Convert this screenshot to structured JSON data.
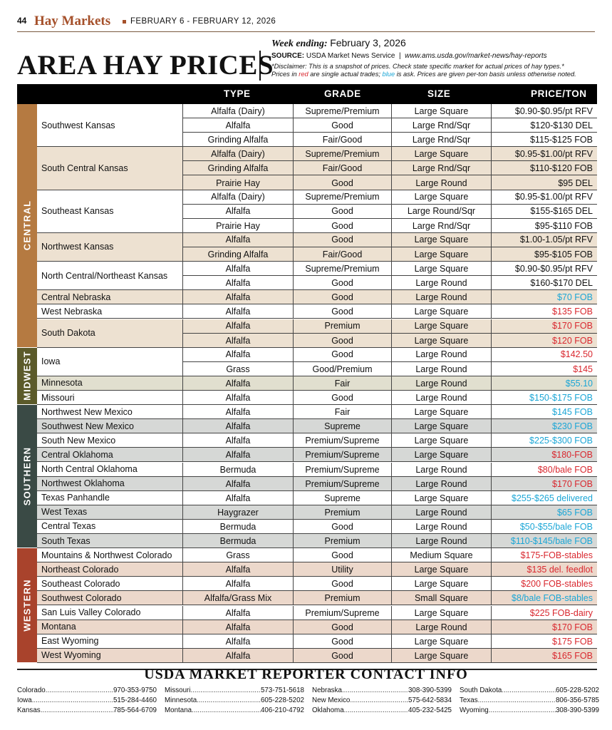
{
  "header": {
    "page_number": "44",
    "section": "Hay Markets",
    "dates": "FEBRUARY 6 - FEBRUARY 12, 2026"
  },
  "title": "AREA HAY PRICES",
  "week_ending_label": "Week ending:",
  "week_ending_date": "February 3, 2026",
  "source_label": "SOURCE:",
  "source_text": "USDA Market News Service",
  "source_url": "www.ams.usda.gov/market-news/hay-reports",
  "disclaimer_1": "*Disclaimer: This is a snapshot of prices. Check state specific market for actual prices of hay types.*",
  "disclaimer_2a": "Prices in ",
  "disclaimer_red": "red",
  "disclaimer_2b": " are single actual trades; ",
  "disclaimer_blue": "blue",
  "disclaimer_2c": " is ask. Prices are given per-ton basis unless otherwise noted.",
  "columns": {
    "type": "TYPE",
    "grade": "GRADE",
    "size": "SIZE",
    "price": "PRICE/TON"
  },
  "colors": {
    "central": "#b57a41",
    "central_band": "#ede1d1",
    "midwest": "#5b5a2a",
    "midwest_band": "#e1dfcf",
    "southern": "#3a4a45",
    "southern_band": "#d6d8d6",
    "western": "#a9432c",
    "western_band": "#ecd8cb",
    "red": "#d9282f",
    "blue": "#1ba6d6"
  },
  "regions": [
    {
      "name": "CENTRAL",
      "key": "central",
      "groups": [
        {
          "location": "Southwest Kansas",
          "rows": [
            {
              "type": "Alfalfa (Dairy)",
              "grade": "Supreme/Premium",
              "size": "Large Square",
              "price": "$0.90-$0.95/pt RFV",
              "pc": "k"
            },
            {
              "type": "Alfalfa",
              "grade": "Good",
              "size": "Large Rnd/Sqr",
              "price": "$120-$130 DEL",
              "pc": "k"
            },
            {
              "type": "Grinding Alfalfa",
              "grade": "Fair/Good",
              "size": "Large Rnd/Sqr",
              "price": "$115-$125 FOB",
              "pc": "k"
            }
          ]
        },
        {
          "location": "South Central Kansas",
          "rows": [
            {
              "type": "Alfalfa (Dairy)",
              "grade": "Supreme/Premium",
              "size": "Large Square",
              "price": "$0.95-$1.00/pt RFV",
              "pc": "k"
            },
            {
              "type": "Grinding Alfalfa",
              "grade": "Fair/Good",
              "size": "Large Rnd/Sqr",
              "price": "$110-$120 FOB",
              "pc": "k"
            },
            {
              "type": "Prairie Hay",
              "grade": "Good",
              "size": "Large Round",
              "price": "$95 DEL",
              "pc": "k"
            }
          ]
        },
        {
          "location": "Southeast Kansas",
          "rows": [
            {
              "type": "Alfalfa (Dairy)",
              "grade": "Supreme/Premium",
              "size": "Large Square",
              "price": "$0.95-$1.00/pt RFV",
              "pc": "k"
            },
            {
              "type": "Alfalfa",
              "grade": "Good",
              "size": "Large Round/Sqr",
              "price": "$155-$165 DEL",
              "pc": "k"
            },
            {
              "type": "Prairie Hay",
              "grade": "Good",
              "size": "Large Rnd/Sqr",
              "price": "$95-$110 FOB",
              "pc": "k"
            }
          ]
        },
        {
          "location": "Northwest Kansas",
          "rows": [
            {
              "type": "Alfalfa",
              "grade": "Good",
              "size": "Large Square",
              "price": "$1.00-1.05/pt RFV",
              "pc": "k"
            },
            {
              "type": "Grinding Alfalfa",
              "grade": "Fair/Good",
              "size": "Large Square",
              "price": "$95-$105 FOB",
              "pc": "k"
            }
          ]
        },
        {
          "location": "North Central/Northeast Kansas",
          "rows": [
            {
              "type": "Alfalfa",
              "grade": "Supreme/Premium",
              "size": "Large Square",
              "price": "$0.90-$0.95/pt RFV",
              "pc": "k"
            },
            {
              "type": "Alfalfa",
              "grade": "Good",
              "size": "Large Round",
              "price": "$160-$170 DEL",
              "pc": "k"
            }
          ]
        },
        {
          "location": "Central Nebraska",
          "rows": [
            {
              "type": "Alfalfa",
              "grade": "Good",
              "size": "Large Round",
              "price": "$70 FOB",
              "pc": "b"
            }
          ]
        },
        {
          "location": "West Nebraska",
          "rows": [
            {
              "type": "Alfalfa",
              "grade": "Good",
              "size": "Large Square",
              "price": "$135 FOB",
              "pc": "r"
            }
          ]
        },
        {
          "location": "South Dakota",
          "rows": [
            {
              "type": "Alfalfa",
              "grade": "Premium",
              "size": "Large Square",
              "price": "$170 FOB",
              "pc": "r"
            },
            {
              "type": "Alfalfa",
              "grade": "Good",
              "size": "Large Square",
              "price": "$120 FOB",
              "pc": "r"
            }
          ]
        }
      ]
    },
    {
      "name": "MIDWEST",
      "key": "midwest",
      "groups": [
        {
          "location": "Iowa",
          "rows": [
            {
              "type": "Alfalfa",
              "grade": "Good",
              "size": "Large Round",
              "price": "$142.50",
              "pc": "r"
            },
            {
              "type": "Grass",
              "grade": "Good/Premium",
              "size": "Large Round",
              "price": "$145",
              "pc": "r"
            }
          ]
        },
        {
          "location": "Minnesota",
          "rows": [
            {
              "type": "Alfalfa",
              "grade": "Fair",
              "size": "Large Round",
              "price": "$55.10",
              "pc": "b"
            }
          ]
        },
        {
          "location": "Missouri",
          "rows": [
            {
              "type": "Alfalfa",
              "grade": "Good",
              "size": "Large Round",
              "price": "$150-$175 FOB",
              "pc": "b"
            }
          ]
        }
      ]
    },
    {
      "name": "SOUTHERN",
      "key": "southern",
      "groups": [
        {
          "location": "Northwest New Mexico",
          "rows": [
            {
              "type": "Alfalfa",
              "grade": "Fair",
              "size": "Large Square",
              "price": "$145 FOB",
              "pc": "b"
            }
          ]
        },
        {
          "location": "Southwest New Mexico",
          "rows": [
            {
              "type": "Alfalfa",
              "grade": "Supreme",
              "size": "Large Square",
              "price": "$230 FOB",
              "pc": "b"
            }
          ]
        },
        {
          "location": "South New Mexico",
          "rows": [
            {
              "type": "Alfalfa",
              "grade": "Premium/Supreme",
              "size": "Large Square",
              "price": "$225-$300 FOB",
              "pc": "b"
            }
          ]
        },
        {
          "location": "Central Oklahoma",
          "rows": [
            {
              "type": "Alfalfa",
              "grade": "Premium/Supreme",
              "size": "Large Square",
              "price": "$180-FOB",
              "pc": "r"
            }
          ]
        },
        {
          "location": "North Central Oklahoma",
          "rows": [
            {
              "type": "Bermuda",
              "grade": "Premium/Supreme",
              "size": "Large Round",
              "price": "$80/bale FOB",
              "pc": "r"
            }
          ]
        },
        {
          "location": "Northwest Oklahoma",
          "rows": [
            {
              "type": "Alfalfa",
              "grade": "Premium/Supreme",
              "size": "Large Round",
              "price": "$170 FOB",
              "pc": "r"
            }
          ]
        },
        {
          "location": "Texas Panhandle",
          "rows": [
            {
              "type": "Alfalfa",
              "grade": "Supreme",
              "size": "Large Square",
              "price": "$255-$265 delivered",
              "pc": "b"
            }
          ]
        },
        {
          "location": "West Texas",
          "rows": [
            {
              "type": "Haygrazer",
              "grade": "Premium",
              "size": "Large Round",
              "price": "$65 FOB",
              "pc": "b"
            }
          ]
        },
        {
          "location": "Central Texas",
          "rows": [
            {
              "type": "Bermuda",
              "grade": "Good",
              "size": "Large Round",
              "price": "$50-$55/bale FOB",
              "pc": "b"
            }
          ]
        },
        {
          "location": "South Texas",
          "rows": [
            {
              "type": "Bermuda",
              "grade": "Premium",
              "size": "Large Round",
              "price": "$110-$145/bale FOB",
              "pc": "b"
            }
          ]
        }
      ]
    },
    {
      "name": "WESTERN",
      "key": "western",
      "groups": [
        {
          "location": "Mountains & Northwest Colorado",
          "rows": [
            {
              "type": "Grass",
              "grade": "Good",
              "size": "Medium Square",
              "price": "$175-FOB-stables",
              "pc": "r"
            }
          ]
        },
        {
          "location": "Northeast Colorado",
          "rows": [
            {
              "type": "Alfalfa",
              "grade": "Utility",
              "size": "Large Square",
              "price": "$135 del. feedlot",
              "pc": "r"
            }
          ]
        },
        {
          "location": "Southeast Colorado",
          "rows": [
            {
              "type": "Alfalfa",
              "grade": "Good",
              "size": "Large Square",
              "price": "$200 FOB-stables",
              "pc": "r"
            }
          ]
        },
        {
          "location": "Southwest Colorado",
          "rows": [
            {
              "type": "Alfalfa/Grass Mix",
              "grade": "Premium",
              "size": "Small Square",
              "price": "$8/bale FOB-stables",
              "pc": "b"
            }
          ]
        },
        {
          "location": "San Luis Valley Colorado",
          "rows": [
            {
              "type": "Alfalfa",
              "grade": "Premium/Supreme",
              "size": "Large Square",
              "price": "$225 FOB-dairy",
              "pc": "r"
            }
          ]
        },
        {
          "location": "Montana",
          "rows": [
            {
              "type": "Alfalfa",
              "grade": "Good",
              "size": "Large Round",
              "price": "$170 FOB",
              "pc": "r"
            }
          ]
        },
        {
          "location": "East Wyoming",
          "rows": [
            {
              "type": "Alfalfa",
              "grade": "Good",
              "size": "Large Square",
              "price": "$175 FOB",
              "pc": "r"
            }
          ]
        },
        {
          "location": "West Wyoming",
          "rows": [
            {
              "type": "Alfalfa",
              "grade": "Good",
              "size": "Large Square",
              "price": "$165 FOB",
              "pc": "r"
            }
          ]
        }
      ]
    }
  ],
  "contact_title": "USDA MARKET REPORTER CONTACT INFO",
  "contacts": [
    [
      {
        "state": "Colorado",
        "phone": "970-353-9750"
      },
      {
        "state": "Iowa",
        "phone": "515-284-4460"
      },
      {
        "state": "Kansas",
        "phone": "785-564-6709"
      }
    ],
    [
      {
        "state": "Missouri",
        "phone": "573-751-5618"
      },
      {
        "state": "Minnesota",
        "phone": "605-228-5202"
      },
      {
        "state": "Montana",
        "phone": "406-210-4792"
      }
    ],
    [
      {
        "state": "Nebraska",
        "phone": "308-390-5399"
      },
      {
        "state": "New Mexico",
        "phone": "575-642-5834"
      },
      {
        "state": "Oklahoma",
        "phone": "405-232-5425"
      }
    ],
    [
      {
        "state": "South Dakota",
        "phone": "605-228-5202"
      },
      {
        "state": "Texas",
        "phone": "806-356-5785"
      },
      {
        "state": "Wyoming",
        "phone": "308-390-5399"
      }
    ]
  ]
}
